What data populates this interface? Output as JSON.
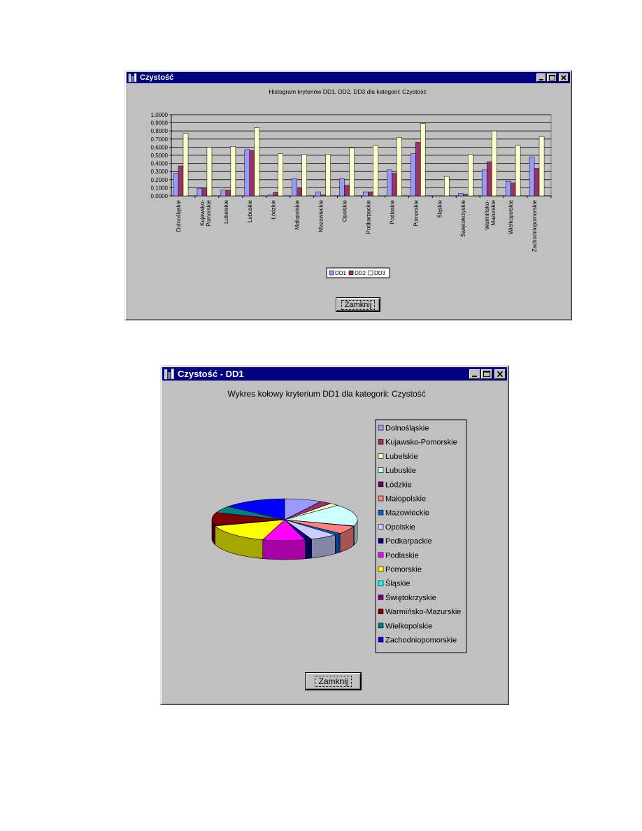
{
  "window1": {
    "title": "Czystość",
    "chart_title": "Histogram kryteriów DD1, DD2, DD3 dla kategorii: Czystość",
    "close_button": "Zamknij"
  },
  "window2": {
    "title": "Czystość - DD1",
    "chart_title": "Wykres kołowy kryterium DD1 dla kategorii: Czystość",
    "close_button": "Zamknij"
  },
  "chart_data": [
    {
      "type": "bar",
      "title": "Histogram kryteriów DD1, DD2, DD3 dla kategorii: Czystość",
      "categories": [
        "Dolnośląskie",
        "Kujawsko-Pomorskie",
        "Lubelskie",
        "Lubuskie",
        "Łódzkie",
        "Małopolskie",
        "Mazowieckie",
        "Opolskie",
        "Podkarpackie",
        "Podlaskie",
        "Pomorskie",
        "Śląskie",
        "Świętokrzyskie",
        "Warmińsko-Mazurskie",
        "Wielkopolskie",
        "Zachodniopomorskie"
      ],
      "yticks": [
        "0,0000",
        "0,1000",
        "0,2000",
        "0,3000",
        "0,4000",
        "0,5000",
        "0,6000",
        "0,7000",
        "0,8000",
        "0,9000",
        "1,0000"
      ],
      "ylim": [
        0,
        1
      ],
      "grid": true,
      "legend": "bottom",
      "series": [
        {
          "name": "DD1",
          "color": "#9999ff",
          "values": [
            0.28,
            0.09,
            0.07,
            0.57,
            0.01,
            0.21,
            0.05,
            0.21,
            0.05,
            0.32,
            0.52,
            0.0,
            0.03,
            0.32,
            0.18,
            0.48
          ]
        },
        {
          "name": "DD2",
          "color": "#993366",
          "values": [
            0.37,
            0.09,
            0.07,
            0.56,
            0.04,
            0.09,
            0.01,
            0.13,
            0.05,
            0.28,
            0.66,
            0.0,
            0.02,
            0.42,
            0.16,
            0.34
          ]
        },
        {
          "name": "DD3",
          "color": "#ffffcc",
          "values": [
            0.77,
            0.6,
            0.61,
            0.84,
            0.52,
            0.51,
            0.51,
            0.59,
            0.62,
            0.72,
            0.89,
            0.24,
            0.51,
            0.8,
            0.62,
            0.73
          ]
        }
      ]
    },
    {
      "type": "pie",
      "title": "Wykres kołowy kryterium DD1 dla kategorii: Czystość",
      "legend": "right",
      "labels": [
        "Dolnośląskie",
        "Kujawsko-Pomorskie",
        "Lubelskie",
        "Lubuskie",
        "Łódzkie",
        "Małopolskie",
        "Mazowieckie",
        "Opolskie",
        "Podkarpackie",
        "Podlaskie",
        "Pomorskie",
        "Śląskie",
        "Świętokrzyskie",
        "Warmińsko-Mazurskie",
        "Wielkopolskie",
        "Zachodniopomorskie"
      ],
      "colors": [
        "#9999ff",
        "#993366",
        "#ffffcc",
        "#ccffff",
        "#660066",
        "#ff8080",
        "#0066cc",
        "#ccccff",
        "#000080",
        "#ff00ff",
        "#ffff00",
        "#00ffff",
        "#800080",
        "#800000",
        "#008080",
        "#0000ff"
      ],
      "values": [
        0.28,
        0.09,
        0.07,
        0.57,
        0.01,
        0.21,
        0.05,
        0.21,
        0.05,
        0.32,
        0.52,
        0.0,
        0.03,
        0.32,
        0.18,
        0.48
      ]
    }
  ]
}
